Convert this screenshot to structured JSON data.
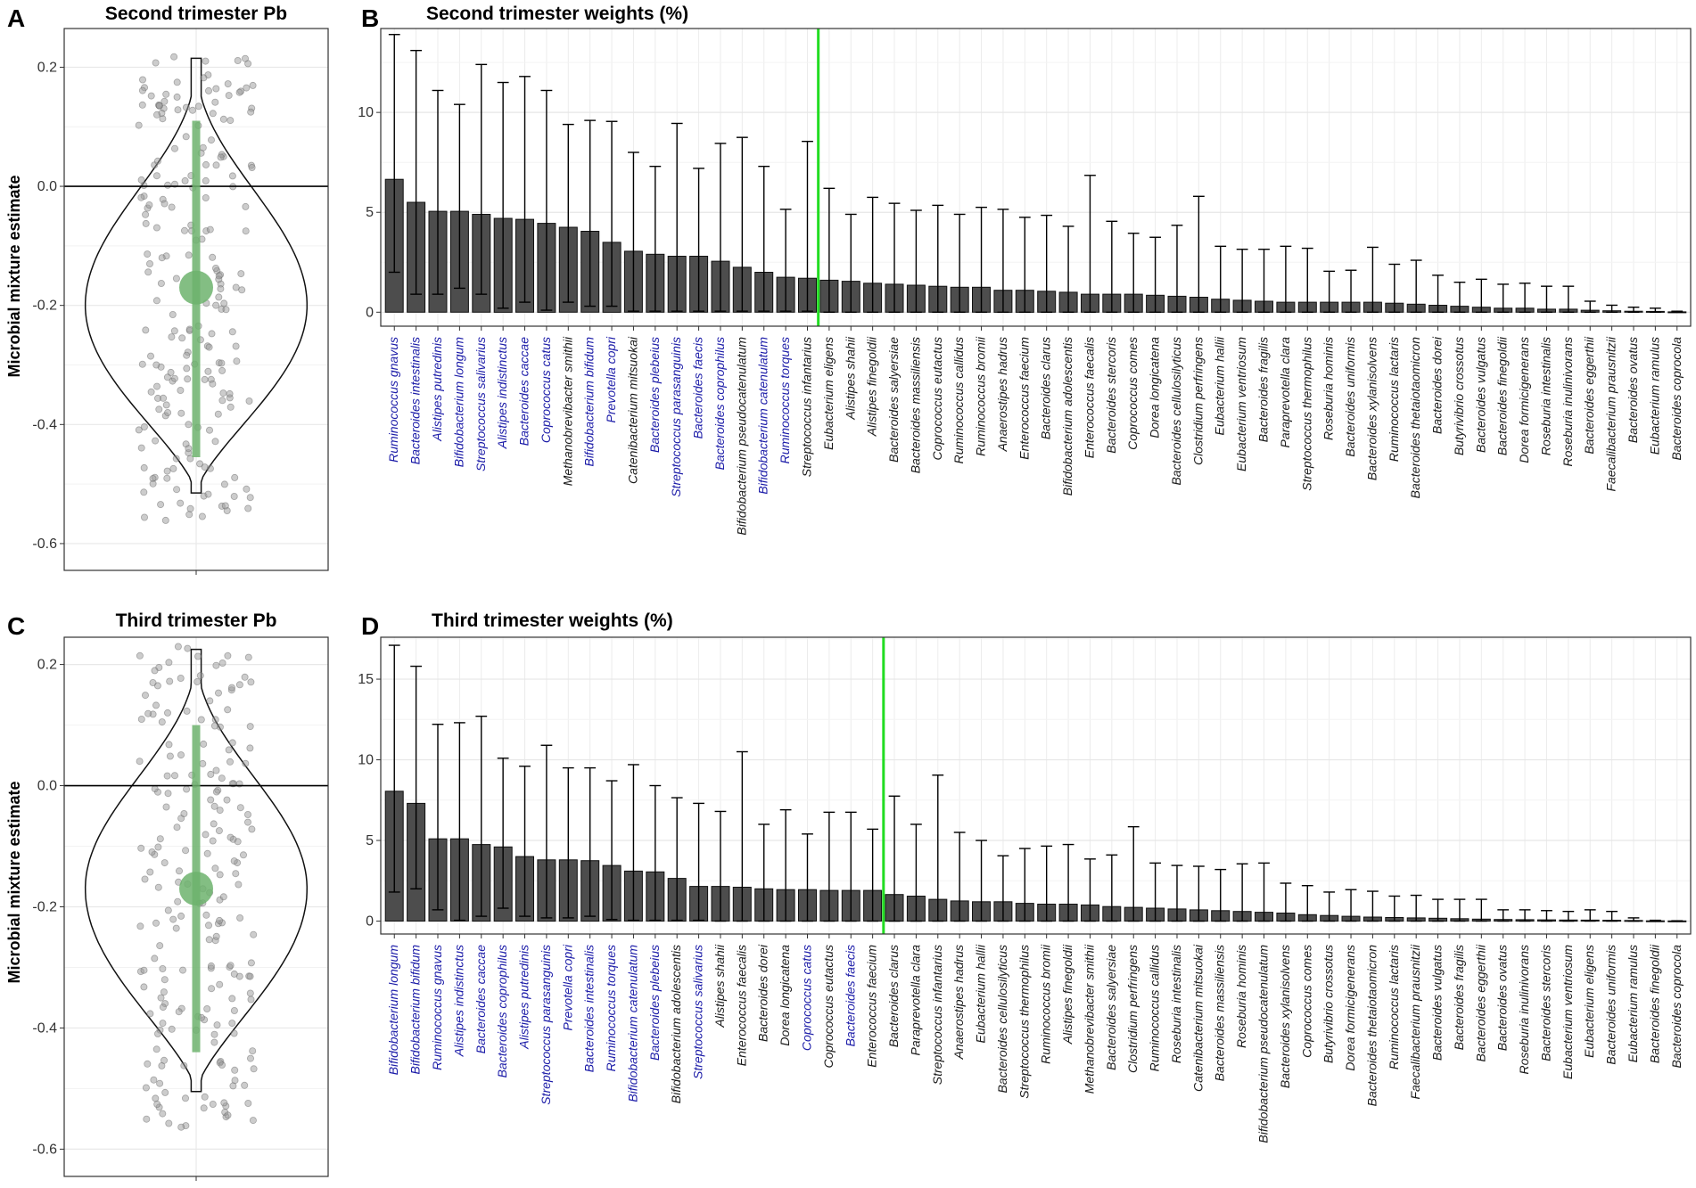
{
  "figure": {
    "letters": [
      "A",
      "B",
      "C",
      "D"
    ]
  },
  "chart_data": [
    {
      "id": "A",
      "type": "violin",
      "title": "Second trimester Pb",
      "ylabel": "Microbial mixture estimate",
      "ylim": [
        -0.645,
        0.265
      ],
      "yticks": [
        0.2,
        0.0,
        -0.2,
        -0.4,
        -0.6
      ],
      "ytick_labels": [
        "0.2",
        "0.0",
        "-0.2",
        "-0.4",
        "-0.6"
      ],
      "hline": 0.0,
      "violin_range": [
        -0.515,
        0.215
      ],
      "violin_mode": -0.2,
      "point_estimate": -0.17,
      "interval": [
        -0.455,
        0.11
      ],
      "points_range": [
        -0.565,
        0.22
      ],
      "colors": {
        "estimate": "#6db36d",
        "points": "#9a9a9a"
      }
    },
    {
      "id": "B",
      "type": "bar",
      "title": "Second trimester weights (%)",
      "ylim": [
        -0.7,
        14.2
      ],
      "yticks": [
        0,
        5,
        10
      ],
      "threshold_after_index": 19,
      "threshold_color": "#22dd22",
      "bar_color": "#4d4d4d",
      "highlight_color": "#1c1ca8",
      "categories": [
        "Ruminococcus gnavus",
        "Bacteroides intestinalis",
        "Alistipes putredinis",
        "Bifidobacterium longum",
        "Streptococcus salivarius",
        "Alistipes indistinctus",
        "Bacteroides caccae",
        "Coprococcus catus",
        "Methanobrevibacter smithii",
        "Bifidobacterium bifidum",
        "Prevotella copri",
        "Catenibacterium mitsuokai",
        "Bacteroides plebeius",
        "Streptococcus parasanguinis",
        "Bacteroides faecis",
        "Bacteroides coprophilus",
        "Bifidobacterium pseudocatenulatum",
        "Bifidobacterium catenulatum",
        "Ruminococcus torques",
        "Streptococcus infantarius",
        "Eubacterium eligens",
        "Alistipes shahii",
        "Alistipes finegoldii",
        "Bacteroides salyersiae",
        "Bacteroides massiliensis",
        "Coprococcus eutactus",
        "Ruminococcus callidus",
        "Ruminococcus bromii",
        "Anaerostipes hadrus",
        "Enterococcus faecium",
        "Bacteroides clarus",
        "Bifidobacterium adolescentis",
        "Enterococcus faecalis",
        "Bacteroides stercoris",
        "Coprococcus comes",
        "Dorea longicatena",
        "Bacteroides cellulosilyticus",
        "Clostridium perfringens",
        "Eubacterium hallii",
        "Eubacterium ventriosum",
        "Bacteroides fragilis",
        "Paraprevotella clara",
        "Streptococcus thermophilus",
        "Roseburia hominis",
        "Bacteroides uniformis",
        "Bacteroides xylanisolvens",
        "Ruminococcus lactaris",
        "Bacteroides thetaiotaomicron",
        "Bacteroides dorei",
        "Butyrivibrio crossotus",
        "Bacteroides vulgatus",
        "Bacteroides finegoldii",
        "Dorea formicigenerans",
        "Roseburia intestinalis",
        "Roseburia inulinivorans",
        "Bacteroides eggerthii",
        "Faecalibacterium prausnitzii",
        "Bacteroides ovatus",
        "Eubacterium ramulus",
        "Bacteroides coprocola"
      ],
      "highlighted": [
        true,
        true,
        true,
        true,
        true,
        true,
        true,
        true,
        false,
        true,
        true,
        false,
        true,
        true,
        true,
        true,
        false,
        true,
        true,
        false,
        false,
        false,
        false,
        false,
        false,
        false,
        false,
        false,
        false,
        false,
        false,
        false,
        false,
        false,
        false,
        false,
        false,
        false,
        false,
        false,
        false,
        false,
        false,
        false,
        false,
        false,
        false,
        false,
        false,
        false,
        false,
        false,
        false,
        false,
        false,
        false,
        false,
        false,
        false,
        false
      ],
      "values": [
        6.65,
        5.5,
        5.05,
        5.05,
        4.9,
        4.7,
        4.65,
        4.45,
        4.25,
        4.05,
        3.5,
        3.05,
        2.9,
        2.8,
        2.8,
        2.55,
        2.25,
        2.0,
        1.75,
        1.7,
        1.6,
        1.55,
        1.45,
        1.4,
        1.35,
        1.3,
        1.25,
        1.25,
        1.1,
        1.1,
        1.05,
        1.0,
        0.9,
        0.9,
        0.9,
        0.85,
        0.8,
        0.75,
        0.65,
        0.6,
        0.55,
        0.5,
        0.5,
        0.5,
        0.5,
        0.5,
        0.45,
        0.4,
        0.35,
        0.3,
        0.25,
        0.2,
        0.2,
        0.15,
        0.15,
        0.1,
        0.07,
        0.05,
        0.04,
        0.02
      ],
      "lower": [
        2.0,
        0.9,
        0.9,
        1.2,
        0.9,
        0.2,
        0.5,
        0.1,
        0.5,
        0.3,
        0.3,
        0.05,
        0.05,
        0.05,
        0.05,
        0.05,
        0.05,
        0.05,
        0.05,
        0.05,
        0,
        0,
        0,
        0,
        0,
        0,
        0,
        0,
        0,
        0,
        0,
        0,
        0,
        0,
        0,
        0,
        0,
        0,
        0,
        0,
        0,
        0,
        0,
        0,
        0,
        0,
        0,
        0,
        0,
        0,
        0,
        0,
        0,
        0,
        0,
        0,
        0,
        0,
        0,
        0
      ],
      "upper": [
        13.9,
        13.1,
        11.1,
        10.4,
        12.4,
        11.5,
        11.8,
        11.1,
        9.4,
        9.6,
        9.55,
        8.0,
        7.3,
        9.45,
        7.2,
        8.45,
        8.75,
        7.3,
        5.15,
        8.55,
        6.2,
        4.9,
        5.75,
        5.45,
        5.1,
        5.35,
        4.9,
        5.25,
        5.15,
        4.75,
        4.85,
        4.3,
        6.85,
        4.55,
        3.95,
        3.75,
        4.35,
        5.8,
        3.3,
        3.15,
        3.15,
        3.3,
        3.2,
        2.05,
        2.1,
        3.25,
        2.4,
        2.6,
        1.85,
        1.5,
        1.65,
        1.4,
        1.45,
        1.3,
        1.3,
        0.55,
        0.35,
        0.25,
        0.2,
        0.05
      ]
    },
    {
      "id": "C",
      "type": "violin",
      "title": "Third trimester Pb",
      "ylabel": "Microbial mixture estimate",
      "ylim": [
        -0.645,
        0.245
      ],
      "yticks": [
        0.2,
        0.0,
        -0.2,
        -0.4,
        -0.6
      ],
      "ytick_labels": [
        "0.2",
        "0.0",
        "-0.2",
        "-0.4",
        "-0.6"
      ],
      "hline": 0.0,
      "violin_range": [
        -0.505,
        0.225
      ],
      "violin_mode": -0.17,
      "point_estimate": -0.17,
      "interval": [
        -0.44,
        0.1
      ],
      "points_range": [
        -0.565,
        0.23
      ],
      "colors": {
        "estimate": "#6db36d",
        "points": "#9a9a9a"
      }
    },
    {
      "id": "D",
      "type": "bar",
      "title": "Third trimester weights (%)",
      "ylim": [
        -0.8,
        17.6
      ],
      "yticks": [
        0,
        5,
        10,
        15
      ],
      "threshold_after_index": 22,
      "threshold_color": "#22dd22",
      "bar_color": "#4d4d4d",
      "highlight_color": "#1c1ca8",
      "categories": [
        "Bifidobacterium longum",
        "Bifidobacterium bifidum",
        "Ruminococcus gnavus",
        "Alistipes indistinctus",
        "Bacteroides caccae",
        "Bacteroides coprophilus",
        "Alistipes putredinis",
        "Streptococcus parasanguinis",
        "Prevotella copri",
        "Bacteroides intestinalis",
        "Ruminococcus torques",
        "Bifidobacterium catenulatum",
        "Bacteroides plebeius",
        "Bifidobacterium adolescentis",
        "Streptococcus salivarius",
        "Alistipes shahii",
        "Enterococcus faecalis",
        "Bacteroides dorei",
        "Dorea longicatena",
        "Coprococcus catus",
        "Coprococcus eutactus",
        "Bacteroides faecis",
        "Enterococcus faecium",
        "Bacteroides clarus",
        "Paraprevotella clara",
        "Streptococcus infantarius",
        "Anaerostipes hadrus",
        "Eubacterium hallii",
        "Bacteroides cellulosilyticus",
        "Streptococcus thermophilus",
        "Ruminococcus bromii",
        "Alistipes finegoldii",
        "Methanobrevibacter smithii",
        "Bacteroides salyersiae",
        "Clostridium perfringens",
        "Ruminococcus callidus",
        "Roseburia intestinalis",
        "Catenibacterium mitsuokai",
        "Bacteroides massiliensis",
        "Roseburia hominis",
        "Bifidobacterium pseudocatenulatum",
        "Bacteroides xylanisolvens",
        "Coprococcus comes",
        "Butyrivibrio crossotus",
        "Dorea formicigenerans",
        "Bacteroides thetaiotaomicron",
        "Ruminococcus lactaris",
        "Faecalibacterium prausnitzii",
        "Bacteroides vulgatus",
        "Bacteroides fragilis",
        "Bacteroides eggerthii",
        "Bacteroides ovatus",
        "Roseburia inulinivorans",
        "Bacteroides stercoris",
        "Eubacterium ventriosum",
        "Eubacterium eligens",
        "Bacteroides uniformis",
        "Eubacterium ramulus",
        "Bacteroides finegoldii",
        "Bacteroides coprocola"
      ],
      "highlighted": [
        true,
        true,
        true,
        true,
        true,
        true,
        true,
        true,
        true,
        true,
        true,
        true,
        true,
        false,
        true,
        false,
        false,
        false,
        false,
        true,
        false,
        true,
        false,
        false,
        false,
        false,
        false,
        false,
        false,
        false,
        false,
        false,
        false,
        false,
        false,
        false,
        false,
        false,
        false,
        false,
        false,
        false,
        false,
        false,
        false,
        false,
        false,
        false,
        false,
        false,
        false,
        false,
        false,
        false,
        false,
        false,
        false,
        false,
        false,
        false
      ],
      "values": [
        8.05,
        7.3,
        5.1,
        5.1,
        4.75,
        4.6,
        4.0,
        3.8,
        3.8,
        3.75,
        3.45,
        3.1,
        3.05,
        2.65,
        2.15,
        2.15,
        2.1,
        2.0,
        1.95,
        1.95,
        1.9,
        1.9,
        1.9,
        1.65,
        1.55,
        1.35,
        1.25,
        1.2,
        1.2,
        1.1,
        1.05,
        1.05,
        1.0,
        0.9,
        0.85,
        0.8,
        0.75,
        0.7,
        0.65,
        0.6,
        0.55,
        0.5,
        0.4,
        0.35,
        0.3,
        0.25,
        0.22,
        0.2,
        0.18,
        0.15,
        0.12,
        0.1,
        0.09,
        0.08,
        0.07,
        0.06,
        0.05,
        0.04,
        0.02,
        0.01
      ],
      "lower": [
        1.8,
        2.0,
        0.7,
        0.05,
        0.3,
        0.8,
        0.3,
        0.2,
        0.2,
        0.3,
        0.1,
        0.05,
        0.05,
        0.05,
        0.05,
        0,
        0,
        0,
        0,
        0,
        0,
        0,
        0,
        0,
        0,
        0,
        0,
        0,
        0,
        0,
        0,
        0,
        0,
        0,
        0,
        0,
        0,
        0,
        0,
        0,
        0,
        0,
        0,
        0,
        0,
        0,
        0,
        0,
        0,
        0,
        0,
        0,
        0,
        0,
        0,
        0,
        0,
        0,
        0,
        0
      ],
      "upper": [
        17.1,
        15.8,
        12.2,
        12.3,
        12.7,
        10.1,
        9.6,
        10.9,
        9.5,
        9.5,
        8.7,
        9.7,
        8.4,
        7.65,
        7.3,
        6.8,
        10.5,
        6.0,
        6.9,
        5.4,
        6.75,
        6.75,
        5.7,
        7.75,
        6.0,
        9.05,
        5.5,
        5.0,
        4.05,
        4.5,
        4.65,
        4.75,
        3.85,
        4.1,
        5.85,
        3.6,
        3.45,
        3.4,
        3.2,
        3.55,
        3.6,
        2.35,
        2.2,
        1.8,
        1.95,
        1.85,
        1.55,
        1.6,
        1.35,
        1.35,
        1.35,
        0.7,
        0.7,
        0.65,
        0.6,
        0.7,
        0.6,
        0.2,
        0.05,
        0.02
      ]
    }
  ]
}
